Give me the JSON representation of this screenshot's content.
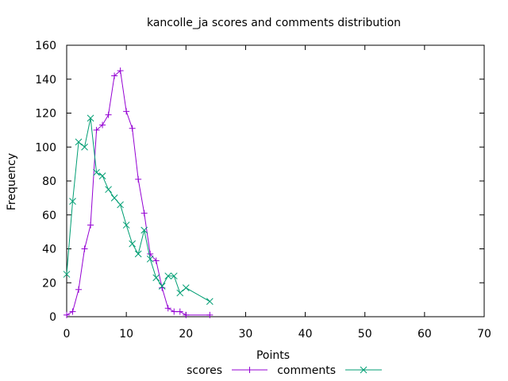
{
  "chart_data": {
    "type": "line",
    "title": "kancolle_ja scores and comments distribution",
    "xlabel": "Points",
    "ylabel": "Frequency",
    "xlim": [
      0,
      70
    ],
    "ylim": [
      0,
      160
    ],
    "xticks": [
      0,
      10,
      20,
      30,
      40,
      50,
      60,
      70
    ],
    "yticks": [
      0,
      20,
      40,
      60,
      80,
      100,
      120,
      140,
      160
    ],
    "grid": false,
    "legend_position": "bottom",
    "series": [
      {
        "name": "scores",
        "color": "#9400d3",
        "marker": "plus",
        "x": [
          0,
          1,
          2,
          3,
          4,
          5,
          6,
          7,
          8,
          9,
          10,
          11,
          12,
          13,
          14,
          15,
          16,
          17,
          18,
          19,
          20,
          24
        ],
        "y": [
          1,
          3,
          16,
          40,
          54,
          110,
          113,
          119,
          142,
          145,
          121,
          111,
          81,
          61,
          37,
          33,
          17,
          5,
          3,
          3,
          1,
          1
        ]
      },
      {
        "name": "comments",
        "color": "#009e73",
        "marker": "cross",
        "x": [
          0,
          1,
          2,
          3,
          4,
          5,
          6,
          7,
          8,
          9,
          10,
          11,
          12,
          13,
          14,
          15,
          16,
          17,
          18,
          19,
          20,
          24
        ],
        "y": [
          25,
          68,
          103,
          100,
          117,
          85,
          83,
          75,
          70,
          66,
          54,
          43,
          37,
          51,
          34,
          23,
          18,
          24,
          24,
          14,
          17,
          9
        ]
      }
    ]
  }
}
